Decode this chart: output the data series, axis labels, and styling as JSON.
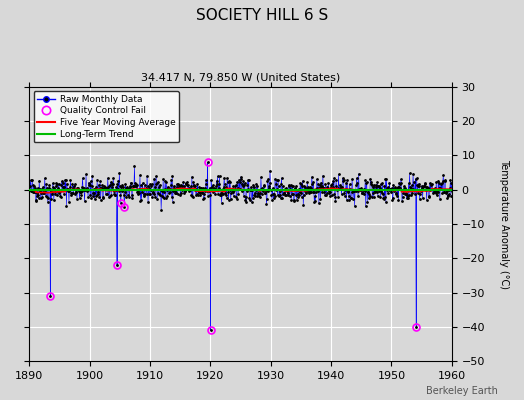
{
  "title": "SOCIETY HILL 6 S",
  "subtitle": "34.417 N, 79.850 W (United States)",
  "ylabel": "Temperature Anomaly (°C)",
  "watermark": "Berkeley Earth",
  "xlim": [
    1890,
    1960
  ],
  "ylim": [
    -50,
    30
  ],
  "yticks": [
    -50,
    -40,
    -30,
    -20,
    -10,
    0,
    10,
    20,
    30
  ],
  "xticks": [
    1890,
    1900,
    1910,
    1920,
    1930,
    1940,
    1950,
    1960
  ],
  "bg_color": "#d8d8d8",
  "plot_bg_color": "#d8d8d8",
  "grid_color": "#ffffff",
  "raw_line_color": "#0000ff",
  "raw_dot_color": "#000000",
  "qc_fail_color": "#ff00ff",
  "moving_avg_color": "#ff0000",
  "trend_color": "#00bb00",
  "seed": 42,
  "start_year": 1890,
  "end_year": 1960,
  "qc_fail_points": [
    {
      "year": 1893.5,
      "value": -31
    },
    {
      "year": 1904.5,
      "value": -22
    },
    {
      "year": 1905.2,
      "value": -4
    },
    {
      "year": 1905.8,
      "value": -5
    },
    {
      "year": 1919.5,
      "value": 8
    },
    {
      "year": 1920.0,
      "value": -41
    },
    {
      "year": 1954.0,
      "value": -40
    }
  ]
}
